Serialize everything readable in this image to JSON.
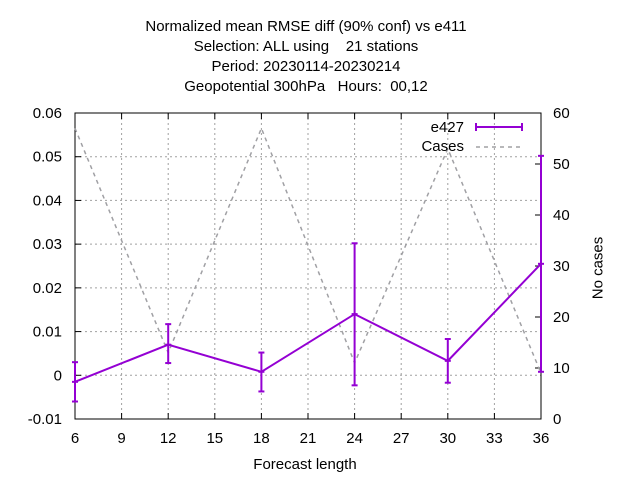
{
  "chart_data": {
    "type": "line",
    "title": [
      "Normalized mean RMSE diff (90% conf) vs e411",
      "Selection: ALL using    21 stations",
      "Period: 20230114-20230214",
      "Geopotential 300hPa   Hours:  00,12"
    ],
    "xlabel": "Forecast length",
    "ylabel": "",
    "y2label": "No cases",
    "x_ticks": [
      6,
      9,
      12,
      15,
      18,
      21,
      24,
      27,
      30,
      33,
      36
    ],
    "y_ticks": [
      -0.01,
      0,
      0.01,
      0.02,
      0.03,
      0.04,
      0.05,
      0.06
    ],
    "y_tick_labels": [
      "-0.01",
      "0",
      "0.01",
      "0.02",
      "0.03",
      "0.04",
      "0.05",
      "0.06"
    ],
    "y2_ticks": [
      0,
      10,
      20,
      30,
      40,
      50,
      60
    ],
    "xlim": [
      6,
      36
    ],
    "ylim": [
      -0.01,
      0.06
    ],
    "y2lim": [
      0,
      60
    ],
    "grid": true,
    "legend_position": "top-right",
    "series": [
      {
        "name": "e427",
        "axis": "left",
        "color": "#9400d3",
        "style": "line-errorbars",
        "x": [
          6,
          12,
          18,
          24,
          30,
          36
        ],
        "y": [
          -0.0015,
          0.007,
          0.0008,
          0.014,
          0.0033,
          0.0255
        ],
        "err_low": [
          -0.006,
          0.0028,
          -0.0037,
          -0.0023,
          -0.0017,
          0.0008
        ],
        "err_high": [
          0.003,
          0.0117,
          0.0052,
          0.0302,
          0.0083,
          0.0502
        ]
      },
      {
        "name": "Cases",
        "axis": "right",
        "color": "#a0a0a4",
        "style": "dashed",
        "x": [
          6,
          12,
          18,
          24,
          30,
          36
        ],
        "y": [
          57,
          13,
          57,
          11,
          53,
          9
        ]
      }
    ]
  }
}
